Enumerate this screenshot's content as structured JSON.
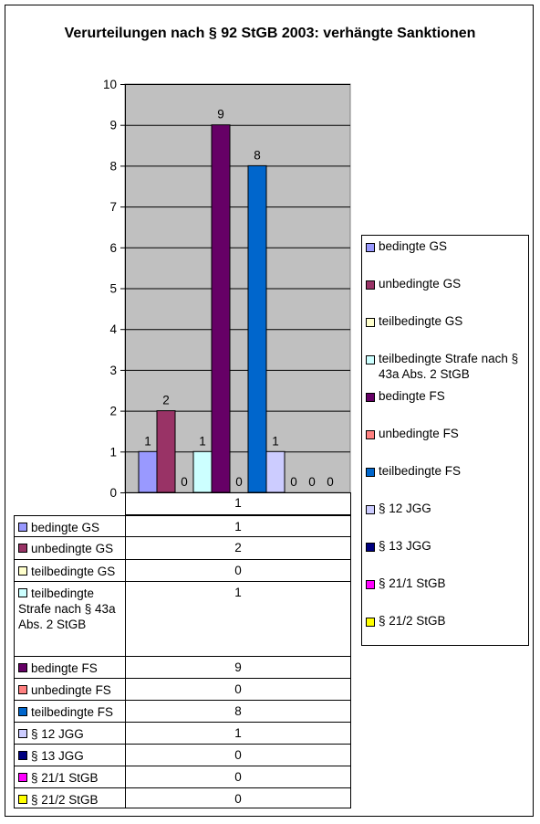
{
  "title": "Verurteilungen nach § 92 StGB 2003: verhängte Sanktionen",
  "chart_data": {
    "type": "bar",
    "title": "Verurteilungen nach § 92 StGB 2003: verhängte Sanktionen",
    "categories": [
      "1"
    ],
    "ylim": [
      0,
      10
    ],
    "yticks": [
      0,
      1,
      2,
      3,
      4,
      5,
      6,
      7,
      8,
      9,
      10
    ],
    "grid": true,
    "legend_placement": "right",
    "series": [
      {
        "name": "bedingte GS",
        "color": "#9999ff",
        "values": [
          1
        ],
        "label": "1"
      },
      {
        "name": "unbedingte GS",
        "color": "#993366",
        "values": [
          2
        ],
        "label": "2"
      },
      {
        "name": "teilbedingte GS",
        "color": "#ffffcc",
        "values": [
          0
        ],
        "label": "0"
      },
      {
        "name": "teilbedingte Strafe nach § 43a Abs. 2 StGB",
        "color": "#ccffff",
        "values": [
          1
        ],
        "label": "1"
      },
      {
        "name": "bedingte FS",
        "color": "#660066",
        "values": [
          9
        ],
        "label": "9"
      },
      {
        "name": "unbedingte FS",
        "color": "#ff8080",
        "values": [
          0
        ],
        "label": "0"
      },
      {
        "name": "teilbedingte FS",
        "color": "#0066cc",
        "values": [
          8
        ],
        "label": "8"
      },
      {
        "name": "§ 12 JGG",
        "color": "#ccccff",
        "values": [
          1
        ],
        "label": "1"
      },
      {
        "name": "§ 13 JGG",
        "color": "#000080",
        "values": [
          0
        ],
        "label": "0"
      },
      {
        "name": "§ 21/1 StGB",
        "color": "#ff00ff",
        "values": [
          0
        ],
        "label": "0"
      },
      {
        "name": "§ 21/2 StGB",
        "color": "#ffff00",
        "values": [
          0
        ],
        "label": "0"
      }
    ]
  }
}
